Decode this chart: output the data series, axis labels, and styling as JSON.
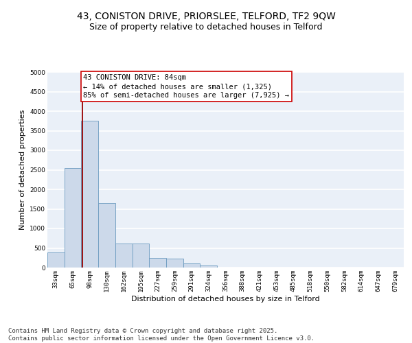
{
  "title_line1": "43, CONISTON DRIVE, PRIORSLEE, TELFORD, TF2 9QW",
  "title_line2": "Size of property relative to detached houses in Telford",
  "xlabel": "Distribution of detached houses by size in Telford",
  "ylabel": "Number of detached properties",
  "categories": [
    "33sqm",
    "65sqm",
    "98sqm",
    "130sqm",
    "162sqm",
    "195sqm",
    "227sqm",
    "259sqm",
    "291sqm",
    "324sqm",
    "356sqm",
    "388sqm",
    "421sqm",
    "453sqm",
    "485sqm",
    "518sqm",
    "550sqm",
    "582sqm",
    "614sqm",
    "647sqm",
    "679sqm"
  ],
  "values": [
    390,
    2550,
    3750,
    1650,
    610,
    610,
    240,
    220,
    110,
    60,
    0,
    0,
    0,
    0,
    0,
    0,
    0,
    0,
    0,
    0,
    0
  ],
  "bar_color": "#ccd9ea",
  "bar_edge_color": "#6b9abf",
  "vline_x": 1.57,
  "vline_color": "#990000",
  "annotation_text": "43 CONISTON DRIVE: 84sqm\n← 14% of detached houses are smaller (1,325)\n85% of semi-detached houses are larger (7,925) →",
  "annotation_box_color": "#ffffff",
  "annotation_box_edge": "#cc0000",
  "ylim": [
    0,
    5000
  ],
  "yticks": [
    0,
    500,
    1000,
    1500,
    2000,
    2500,
    3000,
    3500,
    4000,
    4500,
    5000
  ],
  "background_color": "#eaf0f8",
  "grid_color": "#ffffff",
  "footer_text": "Contains HM Land Registry data © Crown copyright and database right 2025.\nContains public sector information licensed under the Open Government Licence v3.0.",
  "title_fontsize": 10,
  "subtitle_fontsize": 9,
  "axis_label_fontsize": 8,
  "tick_fontsize": 6.5,
  "annotation_fontsize": 7.5,
  "footer_fontsize": 6.5
}
